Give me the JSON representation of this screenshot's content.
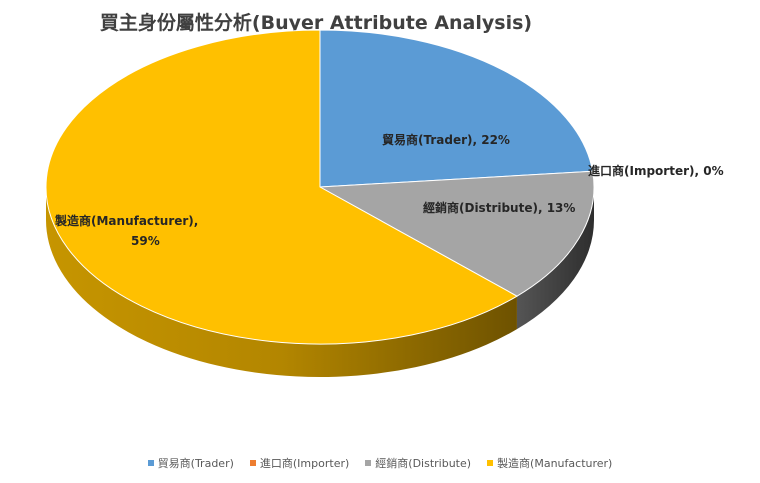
{
  "chart_data": {
    "type": "pie",
    "title": "買主身份屬性分析(Buyer Attribute  Analysis)",
    "slices": [
      {
        "name": "貿易商(Trader)",
        "value": 22,
        "color": "#5B9BD5",
        "label": "貿易商(Trader), 22%"
      },
      {
        "name": "進口商(Importer)",
        "value": 0,
        "color": "#ED7D31",
        "label": "進口商(Importer), 0%"
      },
      {
        "name": "經銷商(Distribute)",
        "value": 13,
        "color": "#A5A5A5",
        "label": "經銷商(Distribute), 13%"
      },
      {
        "name": "製造商(Manufacturer)",
        "value": 59,
        "color": "#FFC000",
        "label_line1": "製造商(Manufacturer),",
        "label_line2": "59%"
      }
    ],
    "legend_position": "bottom"
  }
}
